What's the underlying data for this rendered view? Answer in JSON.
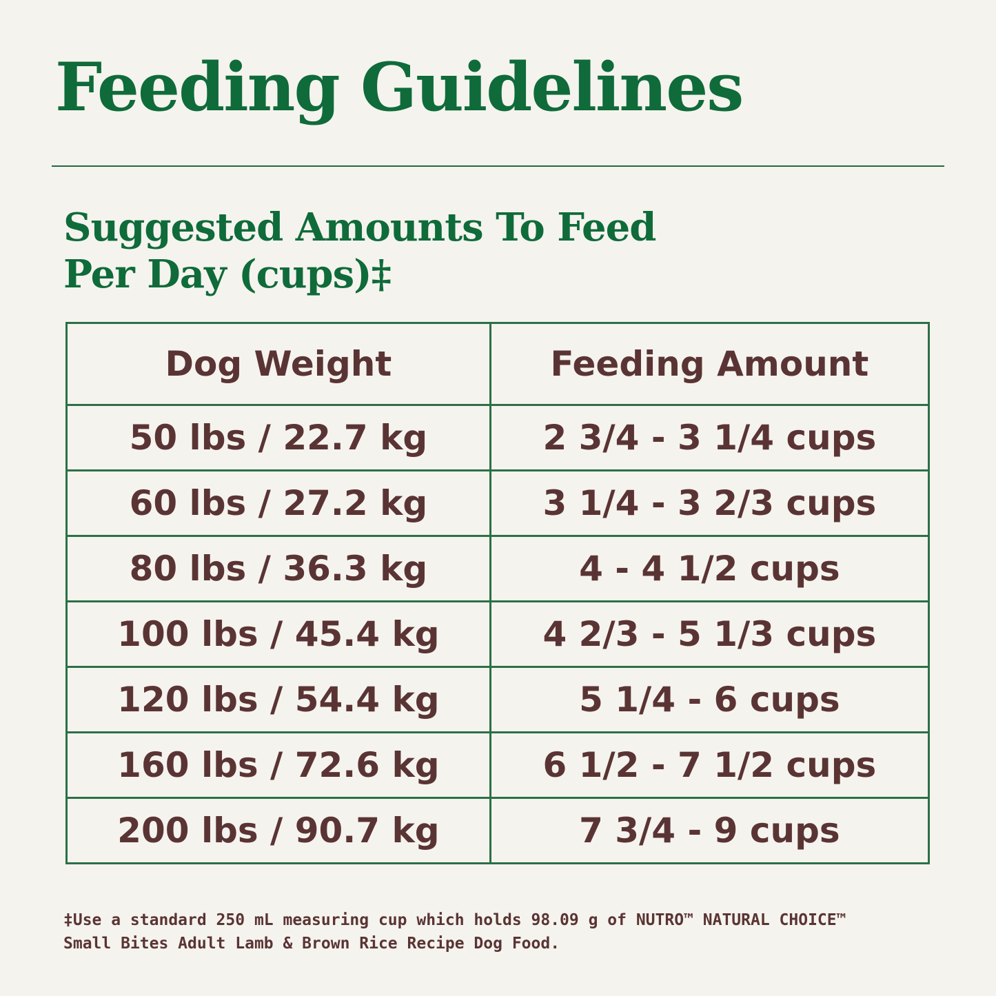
{
  "header": {
    "title": "Feeding Guidelines"
  },
  "subtitle": [
    "Suggested Amounts To Feed",
    "Per Day (cups)‡"
  ],
  "table": {
    "columns": [
      "Dog Weight",
      "Feeding Amount"
    ],
    "rows": [
      [
        "50 lbs / 22.7 kg",
        "2 3/4 - 3 1/4 cups"
      ],
      [
        "60 lbs / 27.2 kg",
        "3 1/4 - 3 2/3 cups"
      ],
      [
        "80 lbs / 36.3 kg",
        "4 - 4 1/2 cups"
      ],
      [
        "100 lbs / 45.4 kg",
        "4 2/3 - 5 1/3 cups"
      ],
      [
        "120 lbs / 54.4 kg",
        "5 1/4 - 6 cups"
      ],
      [
        "160 lbs / 72.6 kg",
        "6 1/2 - 7 1/2 cups"
      ],
      [
        "200 lbs / 90.7 kg",
        "7 3/4 - 9 cups"
      ]
    ]
  },
  "footnote": [
    "‡Use a standard 250 mL measuring cup which holds 98.09 g of NUTRO™ NATURAL CHOICE™",
    "Small Bites Adult Lamb & Brown Rice Recipe Dog Food."
  ]
}
